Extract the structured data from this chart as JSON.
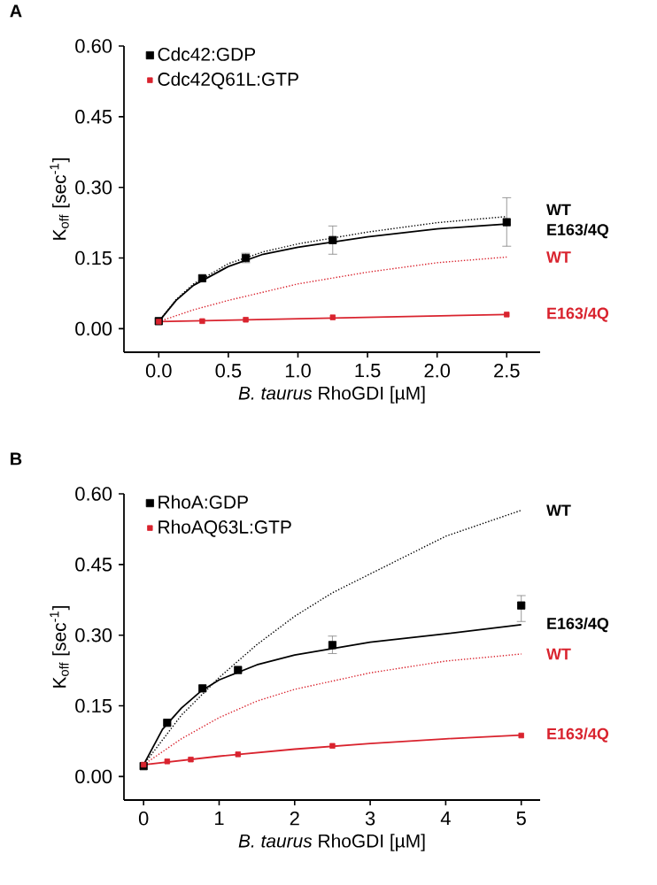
{
  "chart_data": [
    {
      "type": "scatter",
      "title": "A",
      "xlabel": "*B. taurus* RhoGDI [µM]",
      "ylabel": "K$_{off}$ [sec$^{-1}$]",
      "xlim": [
        -0.25,
        2.74
      ],
      "ylim": [
        -0.05,
        0.6
      ],
      "xticks": [
        {
          "value": 0,
          "label": "0.0"
        },
        0.5,
        {
          "value": 1,
          "label": "1.0"
        },
        1.5,
        {
          "value": 2,
          "label": "2.0"
        },
        2.5
      ],
      "yticks": [
        {
          "value": 0,
          "label": "0.00"
        },
        0.15,
        {
          "value": 0.3,
          "label": "0.30"
        },
        0.45,
        {
          "value": 0.6,
          "label": "0.60"
        }
      ],
      "legend": "top left",
      "series": [
        {
          "name": "Cdc42:GDP",
          "color": "#000000",
          "marker": "square",
          "x": [
            0,
            0.3125,
            0.625,
            1.25,
            2.5
          ],
          "values": [
            0.016,
            0.107,
            0.15,
            0.188,
            0.226
          ],
          "errors": [
            null,
            null,
            0.01,
            0.03,
            [
              0.175,
              0.278
            ]
          ]
        },
        {
          "name": "Cdc42Q61L:GTP",
          "color": "#d9232e",
          "marker": "square",
          "x": [
            0,
            0.3125,
            0.625,
            1.25,
            2.5
          ],
          "values": [
            0.015,
            0.016,
            0.019,
            0.024,
            0.03
          ]
        },
        {
          "type": "line",
          "name": "WT",
          "color": "#000000",
          "line_style": "dotted",
          "x": [
            0,
            0.125,
            0.25,
            0.5,
            0.75,
            1,
            1.5,
            2,
            2.5
          ],
          "values": [
            0.015,
            0.062,
            0.095,
            0.138,
            0.163,
            0.18,
            0.205,
            0.225,
            0.238
          ]
        },
        {
          "type": "line",
          "name": "E163/4Q",
          "color": "#000000",
          "line_style": "solid",
          "x": [
            0,
            0.125,
            0.25,
            0.5,
            0.75,
            1,
            1.5,
            2,
            2.5
          ],
          "values": [
            0.015,
            0.06,
            0.092,
            0.132,
            0.158,
            0.173,
            0.195,
            0.212,
            0.222
          ]
        },
        {
          "type": "line",
          "name": "WT",
          "color": "#d9232e",
          "line_style": "dotted",
          "x": [
            0,
            0.25,
            0.5,
            1,
            1.5,
            2,
            2.5
          ],
          "values": [
            0.015,
            0.04,
            0.06,
            0.095,
            0.12,
            0.14,
            0.152
          ]
        },
        {
          "type": "line",
          "name": "E163/4Q",
          "color": "#d9232e",
          "line_style": "solid",
          "x": [
            0,
            2.5
          ],
          "values": [
            0.015,
            0.03
          ]
        }
      ]
    },
    {
      "type": "scatter",
      "title": "B",
      "xlabel": "*B. taurus* RhoGDI [µM]",
      "ylabel": "K$_{off}$ [sec$^{-1}$]",
      "xlim": [
        -0.26,
        5.25
      ],
      "ylim": [
        -0.05,
        0.6
      ],
      "xticks": [
        0,
        1,
        2,
        3,
        4,
        5
      ],
      "yticks": [
        {
          "value": 0,
          "label": "0.00"
        },
        0.15,
        {
          "value": 0.3,
          "label": "0.30"
        },
        0.45,
        {
          "value": 0.6,
          "label": "0.60"
        }
      ],
      "legend": "top left",
      "series": [
        {
          "name": "RhoA:GDP",
          "color": "#000000",
          "marker": "square",
          "x": [
            0,
            0.3125,
            0.78,
            1.25,
            2.5,
            5
          ],
          "values": [
            0.022,
            0.114,
            0.187,
            0.226,
            0.279,
            0.363
          ],
          "errors": [
            null,
            null,
            null,
            null,
            [
              0.261,
              0.298
            ],
            [
              0.329,
              0.384
            ]
          ]
        },
        {
          "name": "RhoAQ63L:GTP",
          "color": "#d9232e",
          "marker": "square",
          "x": [
            0,
            0.3125,
            0.625,
            1.25,
            2.5,
            5
          ],
          "values": [
            0.025,
            0.032,
            0.036,
            0.047,
            0.065,
            0.087
          ]
        },
        {
          "type": "line",
          "name": "WT",
          "color": "#000000",
          "line_style": "dotted",
          "x": [
            0,
            0.5,
            1,
            1.5,
            2,
            2.5,
            3,
            4,
            5
          ],
          "values": [
            0.025,
            0.13,
            0.21,
            0.28,
            0.34,
            0.39,
            0.43,
            0.51,
            0.565
          ]
        },
        {
          "type": "line",
          "name": "E163/4Q",
          "color": "#000000",
          "line_style": "solid",
          "x": [
            0,
            0.25,
            0.5,
            0.75,
            1,
            1.5,
            2,
            3,
            4,
            5
          ],
          "values": [
            0.025,
            0.1,
            0.145,
            0.18,
            0.205,
            0.237,
            0.258,
            0.285,
            0.303,
            0.322
          ]
        },
        {
          "type": "line",
          "name": "WT",
          "color": "#d9232e",
          "line_style": "dotted",
          "x": [
            0,
            0.5,
            1,
            1.5,
            2,
            3,
            4,
            5
          ],
          "values": [
            0.025,
            0.08,
            0.125,
            0.16,
            0.185,
            0.22,
            0.245,
            0.26
          ]
        },
        {
          "type": "line",
          "name": "E163/4Q",
          "color": "#d9232e",
          "line_style": "solid",
          "x": [
            0,
            1,
            2,
            3,
            4,
            5
          ],
          "values": [
            0.025,
            0.043,
            0.058,
            0.07,
            0.08,
            0.088
          ]
        }
      ]
    }
  ]
}
